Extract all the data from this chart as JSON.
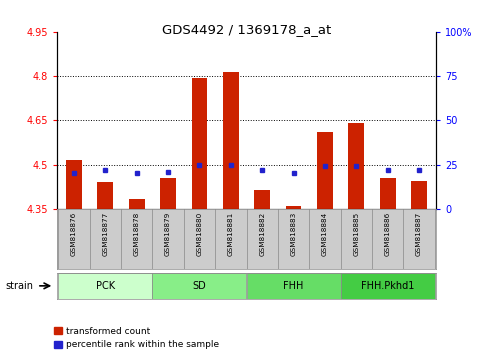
{
  "title": "GDS4492 / 1369178_a_at",
  "samples": [
    "GSM818876",
    "GSM818877",
    "GSM818878",
    "GSM818879",
    "GSM818880",
    "GSM818881",
    "GSM818882",
    "GSM818883",
    "GSM818884",
    "GSM818885",
    "GSM818886",
    "GSM818887"
  ],
  "red_values": [
    4.515,
    4.44,
    4.385,
    4.455,
    4.795,
    4.815,
    4.415,
    4.36,
    4.61,
    4.64,
    4.455,
    4.445
  ],
  "blue_values": [
    20,
    22,
    20,
    21,
    25,
    25,
    22,
    20,
    24,
    24,
    22,
    22
  ],
  "ylim_left": [
    4.35,
    4.95
  ],
  "ylim_right": [
    0,
    100
  ],
  "yticks_left": [
    4.35,
    4.5,
    4.65,
    4.8,
    4.95
  ],
  "yticks_right": [
    0,
    25,
    50,
    75,
    100
  ],
  "grid_lines": [
    4.5,
    4.65,
    4.8
  ],
  "groups": [
    {
      "label": "PCK",
      "start": 0,
      "end": 2,
      "color": "#ccffcc"
    },
    {
      "label": "SD",
      "start": 3,
      "end": 5,
      "color": "#88ee88"
    },
    {
      "label": "FHH",
      "start": 6,
      "end": 8,
      "color": "#66dd66"
    },
    {
      "label": "FHH.Pkhd1",
      "start": 9,
      "end": 11,
      "color": "#44cc44"
    }
  ],
  "bar_color": "#cc2200",
  "marker_color": "#2222cc",
  "bar_width": 0.5,
  "base_value": 4.35,
  "tick_area_color": "#cccccc",
  "figsize": [
    4.93,
    3.54
  ],
  "dpi": 100
}
